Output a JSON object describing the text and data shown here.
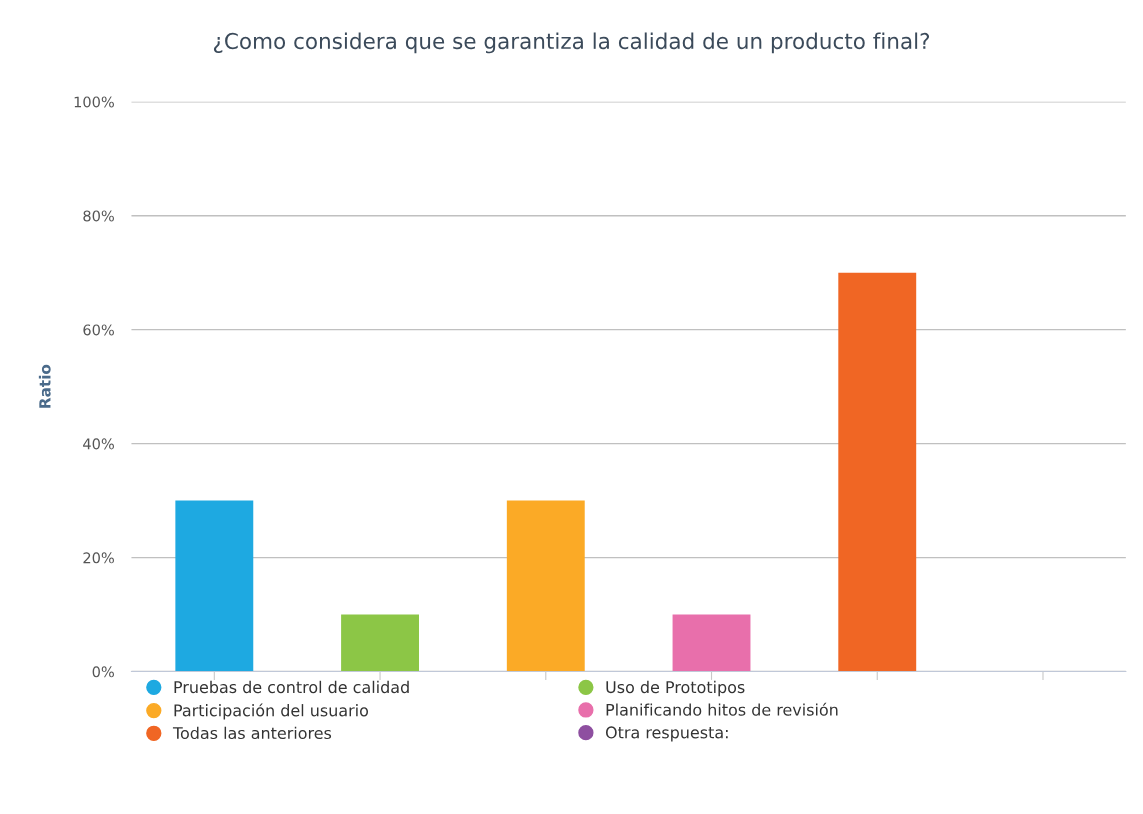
{
  "chart_data": {
    "type": "bar",
    "title": "¿Como considera que se garantiza la calidad de un producto final?",
    "ylabel": "Ratio",
    "categories": [
      null,
      null,
      null,
      null,
      null,
      null
    ],
    "series": [
      {
        "name": "Pruebas de control de calidad",
        "color": "#1ea9e1",
        "values": [
          30,
          null,
          null,
          null,
          null,
          null
        ]
      },
      {
        "name": "Uso de Prototipos",
        "color": "#8cc646",
        "values": [
          null,
          10,
          null,
          null,
          null,
          null
        ]
      },
      {
        "name": "Participación del usuario",
        "color": "#fbaa26",
        "values": [
          null,
          null,
          30,
          null,
          null,
          null
        ]
      },
      {
        "name": "Planificando hitos de revisión",
        "color": "#e86fab",
        "values": [
          null,
          null,
          null,
          10,
          null,
          null
        ]
      },
      {
        "name": "Todas las anteriores",
        "color": "#f06624",
        "values": [
          null,
          null,
          null,
          null,
          70,
          null
        ]
      },
      {
        "name": "Otra respuesta:",
        "color": "#8e4fa0",
        "values": [
          null,
          null,
          null,
          null,
          null,
          0
        ]
      }
    ],
    "ylim": [
      0,
      100
    ],
    "yticks": [
      {
        "value": 0,
        "label": "0%"
      },
      {
        "value": 20,
        "label": "20%"
      },
      {
        "value": 40,
        "label": "40%"
      },
      {
        "value": 60,
        "label": "60%"
      },
      {
        "value": 80,
        "label": "80%"
      },
      {
        "value": 100,
        "label": "100%"
      }
    ],
    "grid": "y",
    "legend": "bottom",
    "tick_labels": "y"
  }
}
